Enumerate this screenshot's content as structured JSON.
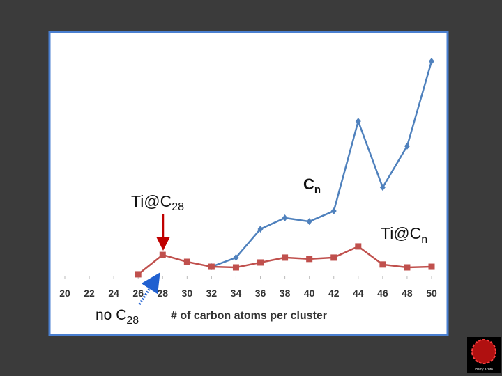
{
  "chart_data": {
    "type": "line",
    "x": [
      20,
      22,
      24,
      26,
      28,
      30,
      32,
      34,
      36,
      38,
      40,
      42,
      44,
      46,
      48,
      50
    ],
    "xticks": [
      20,
      22,
      24,
      26,
      28,
      30,
      32,
      34,
      36,
      38,
      40,
      42,
      44,
      46,
      48,
      50
    ],
    "xlim": [
      20,
      50
    ],
    "ylim": [
      0,
      100
    ],
    "x_label": "# of carbon atoms per cluster",
    "series": [
      {
        "name": "Cn",
        "color": "#4f81bd",
        "marker": "diamond",
        "values": [
          null,
          null,
          null,
          null,
          null,
          null,
          5.3,
          9.4,
          22.2,
          27.2,
          25.6,
          30.3,
          70.6,
          40.9,
          59.4,
          97.5
        ]
      },
      {
        "name": "Ti@Cn",
        "color": "#c0504d",
        "marker": "square",
        "values": [
          null,
          null,
          null,
          1.9,
          10.6,
          7.5,
          5.3,
          5,
          7.2,
          9.4,
          8.8,
          9.4,
          14.4,
          6.3,
          5,
          5.3
        ]
      }
    ],
    "annotations": [
      {
        "text": "Ti@C",
        "sub": "28"
      },
      {
        "text": "no C",
        "sub": "28"
      }
    ],
    "series_labels": [
      {
        "text": "C",
        "sub": "n"
      },
      {
        "text": "Ti@C",
        "sub": "n"
      }
    ],
    "logo_text": "Harry Kroto"
  }
}
